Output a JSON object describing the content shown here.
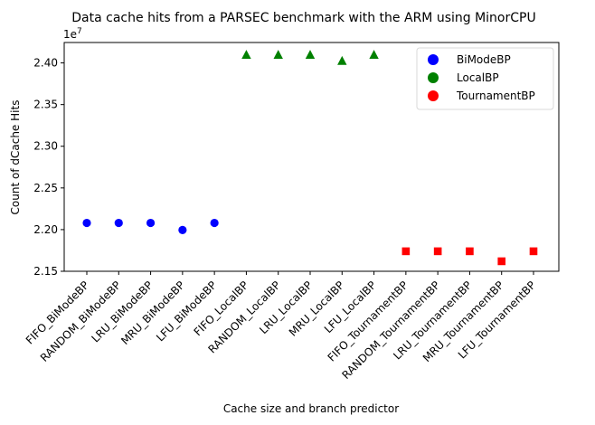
{
  "chart_data": {
    "type": "scatter",
    "title": "Data cache hits from a PARSEC benchmark with the ARM using MinorCPU",
    "xlabel": "Cache size and branch predictor",
    "ylabel": "Count of dCache Hits",
    "y_offset_label": "1e7",
    "y_scale": 10000000,
    "ylim": [
      2.15,
      2.4245
    ],
    "y_ticks": [
      2.15,
      2.2,
      2.25,
      2.3,
      2.35,
      2.4
    ],
    "y_tick_labels": [
      "2.15",
      "2.20",
      "2.25",
      "2.30",
      "2.35",
      "2.40"
    ],
    "grid": false,
    "legend_position": "upper right",
    "categories": [
      "FIFO_BiModeBP",
      "RANDOM_BiModeBP",
      "LRU_BiModeBP",
      "MRU_BiModeBP",
      "LFU_BiModeBP",
      "FIFO_LocalBP",
      "RANDOM_LocalBP",
      "LRU_LocalBP",
      "MRU_LocalBP",
      "LFU_LocalBP",
      "FIFO_TournamentBP",
      "RANDOM_TournamentBP",
      "LRU_TournamentBP",
      "MRU_TournamentBP",
      "LFU_TournamentBP"
    ],
    "series": [
      {
        "name": "BiModeBP",
        "color": "#0000ff",
        "marker": "circle",
        "start_index": 0,
        "values": [
          22080000,
          22080000,
          22080000,
          21995000,
          22080000
        ]
      },
      {
        "name": "LocalBP",
        "color": "#008000",
        "marker": "triangle",
        "start_index": 5,
        "values": [
          24095000,
          24095000,
          24095000,
          24022000,
          24095000
        ]
      },
      {
        "name": "TournamentBP",
        "color": "#ff0000",
        "marker": "square",
        "start_index": 10,
        "values": [
          21740000,
          21740000,
          21740000,
          21620000,
          21740000
        ]
      }
    ]
  }
}
